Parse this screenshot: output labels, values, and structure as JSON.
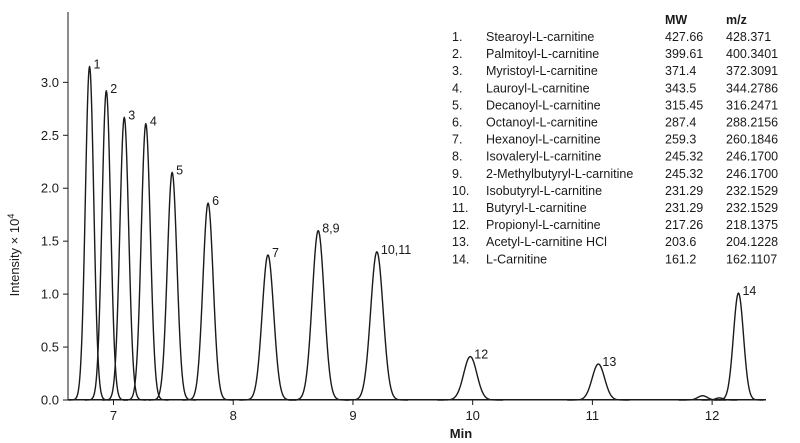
{
  "chart_data": {
    "type": "line",
    "title": "",
    "xlabel": "Min",
    "ylabel": "Intensity × 10",
    "ylabel_exponent": "4",
    "xlim": [
      6.62,
      12.45
    ],
    "ylim": [
      0.0,
      3.4
    ],
    "x_ticks": [
      "7",
      "8",
      "9",
      "10",
      "11",
      "12"
    ],
    "y_ticks": [
      "0.0",
      "0.5",
      "1.0",
      "1.5",
      "2.0",
      "2.5",
      "3.0"
    ],
    "grid": false,
    "peaks": [
      {
        "label": "1",
        "rt": 6.8,
        "height": 3.15,
        "width": 0.035
      },
      {
        "label": "2",
        "rt": 6.94,
        "height": 2.92,
        "width": 0.036
      },
      {
        "label": "3",
        "rt": 7.09,
        "height": 2.67,
        "width": 0.037
      },
      {
        "label": "4",
        "rt": 7.27,
        "height": 2.61,
        "width": 0.038
      },
      {
        "label": "5",
        "rt": 7.49,
        "height": 2.15,
        "width": 0.04
      },
      {
        "label": "6",
        "rt": 7.79,
        "height": 1.86,
        "width": 0.043
      },
      {
        "label": "7",
        "rt": 8.29,
        "height": 1.37,
        "width": 0.048
      },
      {
        "label": "8,9",
        "rt": 8.71,
        "height": 1.6,
        "width": 0.05
      },
      {
        "label": "10,11",
        "rt": 9.2,
        "height": 1.4,
        "width": 0.052
      },
      {
        "label": "12",
        "rt": 9.98,
        "height": 0.41,
        "width": 0.055
      },
      {
        "label": "13",
        "rt": 11.05,
        "height": 0.34,
        "width": 0.052
      },
      {
        "label": "14",
        "rt": 12.22,
        "height": 1.01,
        "width": 0.042
      }
    ],
    "minor_peaks": [
      {
        "rt": 11.92,
        "height": 0.04,
        "width": 0.04
      },
      {
        "rt": 12.06,
        "height": 0.02,
        "width": 0.03
      }
    ]
  },
  "table": {
    "headers": {
      "mw": "MW",
      "mz": "m/z"
    },
    "rows": [
      {
        "num": "1.",
        "name": "Stearoyl-L-carnitine",
        "mw": "427.66",
        "mz": "428.371"
      },
      {
        "num": "2.",
        "name": "Palmitoyl-L-carnitine",
        "mw": "399.61",
        "mz": "400.3401"
      },
      {
        "num": "3.",
        "name": "Myristoyl-L-carnitine",
        "mw": "371.4",
        "mz": "372.3091"
      },
      {
        "num": "4.",
        "name": "Lauroyl-L-carnitine",
        "mw": "343.5",
        "mz": "344.2786"
      },
      {
        "num": "5.",
        "name": "Decanoyl-L-carnitine",
        "mw": "315.45",
        "mz": "316.2471"
      },
      {
        "num": "6.",
        "name": "Octanoyl-L-carnitine",
        "mw": "287.4",
        "mz": "288.2156"
      },
      {
        "num": "7.",
        "name": "Hexanoyl-L-carnitine",
        "mw": "259.3",
        "mz": "260.1846"
      },
      {
        "num": "8.",
        "name": "Isovaleryl-L-carnitine",
        "mw": "245.32",
        "mz": "246.1700"
      },
      {
        "num": "9.",
        "name": "2-Methylbutyryl-L-carnitine",
        "mw": "245.32",
        "mz": "246.1700"
      },
      {
        "num": "10.",
        "name": "Isobutyryl-L-carnitine",
        "mw": "231.29",
        "mz": "232.1529"
      },
      {
        "num": "11.",
        "name": "Butyryl-L-carnitine",
        "mw": "231.29",
        "mz": "232.1529"
      },
      {
        "num": "12.",
        "name": "Propionyl-L-carnitine",
        "mw": "217.26",
        "mz": "218.1375"
      },
      {
        "num": "13.",
        "name": "Acetyl-L-carnitine HCl",
        "mw": "203.6",
        "mz": "204.1228"
      },
      {
        "num": "14.",
        "name": "L-Carnitine",
        "mw": "161.2",
        "mz": "162.1107"
      }
    ]
  },
  "colors": {
    "trace": "#1a1a1a",
    "axis": "#1a1a1a"
  }
}
